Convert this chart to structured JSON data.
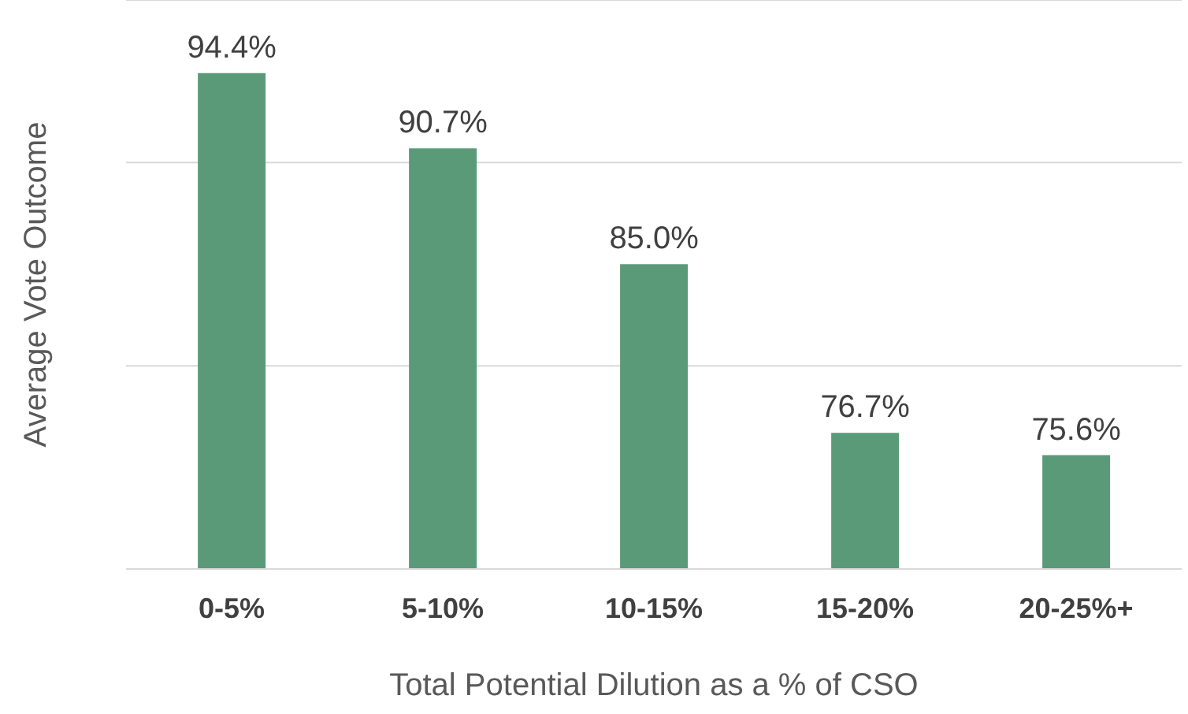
{
  "chart_data": {
    "type": "bar",
    "xlabel": "Total Potential Dilution as a % of CSO",
    "ylabel": "Average Vote Outcome",
    "categories": [
      "0-5%",
      "5-10%",
      "10-15%",
      "15-20%",
      "20-25%+"
    ],
    "values": [
      94.4,
      90.7,
      85.0,
      76.7,
      75.6
    ],
    "value_labels": [
      "94.4%",
      "90.7%",
      "85.0%",
      "76.7%",
      "75.6%"
    ],
    "color": "#5b9a78",
    "ylim": [
      70,
      98
    ],
    "yticks": [
      {
        "value": 70,
        "label": null
      },
      {
        "value": 80,
        "label": null
      },
      {
        "value": 90,
        "label": null
      }
    ],
    "tick_labels": "x",
    "grid": "y"
  }
}
